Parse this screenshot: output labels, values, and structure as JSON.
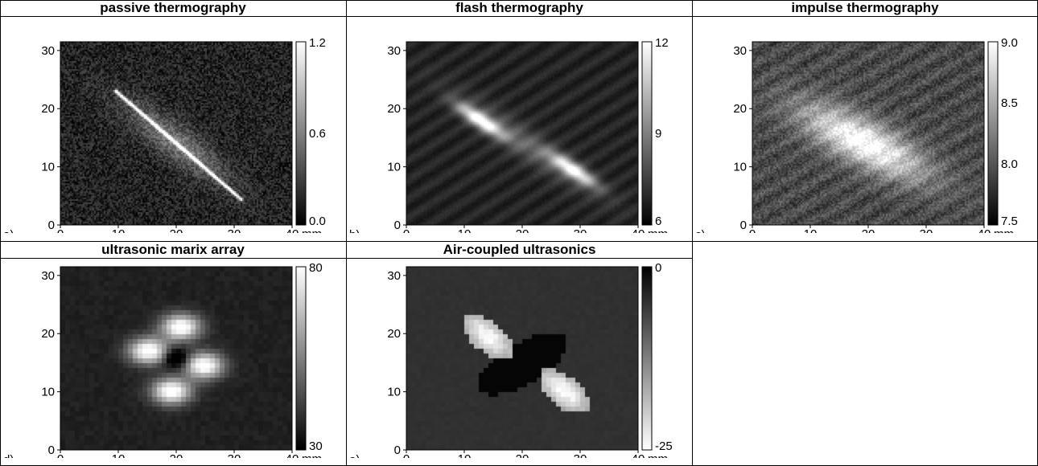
{
  "panels": [
    {
      "letter": "a)",
      "title": "passive thermography",
      "method": "passive",
      "colormap": "gray",
      "x_ticks": [
        "0",
        "10",
        "20",
        "30",
        "40"
      ],
      "x_unit": "mm",
      "y_ticks": [
        "0",
        "10",
        "20",
        "30"
      ],
      "colorbar": {
        "top": "1.2",
        "mid": "0.6",
        "bottom": "0.0"
      }
    },
    {
      "letter": "b)",
      "title": "flash thermography",
      "method": "flash",
      "colormap": "gray",
      "x_ticks": [
        "0",
        "10",
        "20",
        "30",
        "40"
      ],
      "x_unit": "mm",
      "y_ticks": [
        "0",
        "10",
        "20",
        "30"
      ],
      "colorbar": {
        "top": "12",
        "mid": "9",
        "bottom": "6"
      }
    },
    {
      "letter": "c)",
      "title": "impulse thermography",
      "method": "impulse",
      "colormap": "gray",
      "x_ticks": [
        "0",
        "10",
        "20",
        "30",
        "40"
      ],
      "x_unit": "mm",
      "y_ticks": [
        "0",
        "10",
        "20",
        "30"
      ],
      "colorbar": {
        "top": "9.0",
        "mid1": "8.5",
        "mid2": "8.0",
        "bottom": "7.5"
      }
    },
    {
      "letter": "d)",
      "title": "ultrasonic marix array",
      "method": "matrix",
      "colormap": "gray",
      "x_ticks": [
        "0",
        "10",
        "20",
        "30",
        "40"
      ],
      "x_unit": "mm",
      "y_ticks": [
        "0",
        "10",
        "20",
        "30"
      ],
      "colorbar": {
        "top": "80",
        "bottom": "30"
      }
    },
    {
      "letter": "e)",
      "title": "Air-coupled ultrasonics",
      "method": "aircoupled",
      "colormap": "gray-reversed",
      "x_ticks": [
        "0",
        "10",
        "20",
        "30",
        "40"
      ],
      "x_unit": "mm",
      "y_ticks": [
        "0",
        "10",
        "20",
        "30"
      ],
      "colorbar": {
        "top": "0",
        "bottom": "-25"
      }
    }
  ]
}
